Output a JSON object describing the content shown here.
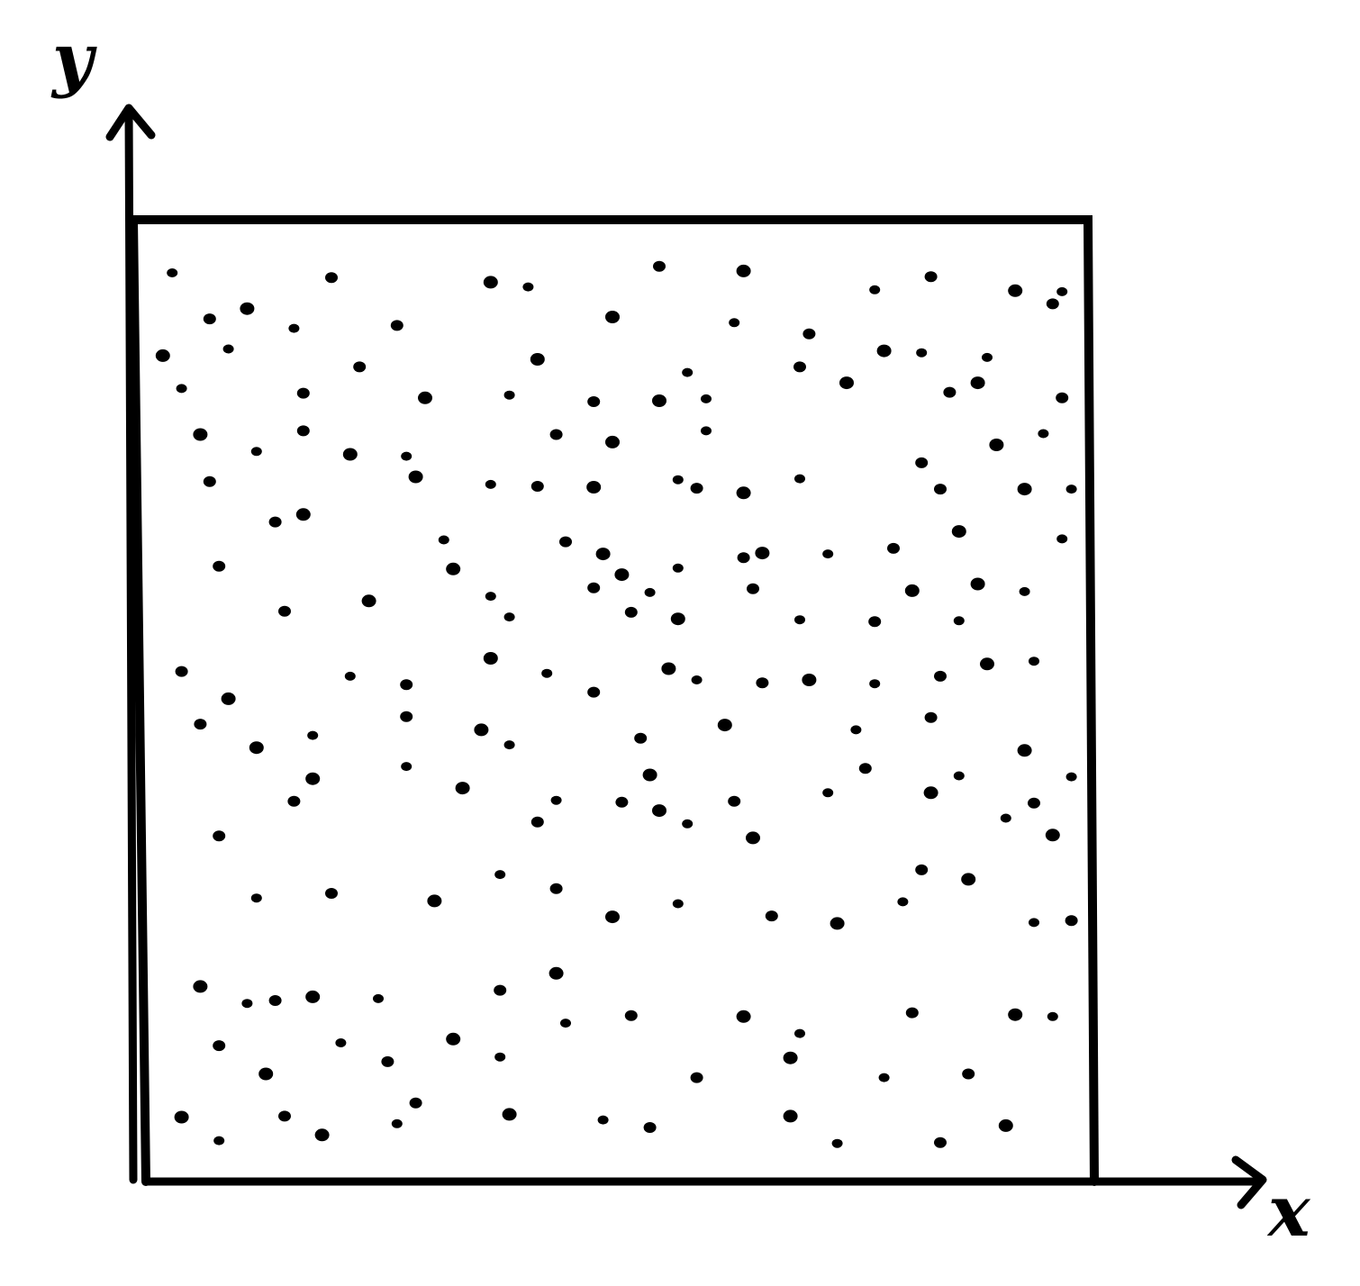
{
  "axes": {
    "x_label": "x",
    "y_label": "y"
  },
  "colors": {
    "ink": "#000000",
    "background": "#ffffff"
  },
  "chart_data": {
    "type": "scatter",
    "xlim": [
      0,
      1
    ],
    "ylim": [
      0,
      1
    ],
    "grid": false,
    "points": [
      [
        0.03,
        0.955
      ],
      [
        0.2,
        0.95
      ],
      [
        0.37,
        0.945
      ],
      [
        0.41,
        0.94
      ],
      [
        0.55,
        0.962
      ],
      [
        0.64,
        0.957
      ],
      [
        0.78,
        0.937
      ],
      [
        0.84,
        0.951
      ],
      [
        0.93,
        0.936
      ],
      [
        0.98,
        0.935
      ],
      [
        0.07,
        0.906
      ],
      [
        0.11,
        0.917
      ],
      [
        0.16,
        0.896
      ],
      [
        0.27,
        0.899
      ],
      [
        0.5,
        0.908
      ],
      [
        0.63,
        0.902
      ],
      [
        0.71,
        0.89
      ],
      [
        0.79,
        0.872
      ],
      [
        0.9,
        0.865
      ],
      [
        0.97,
        0.922
      ],
      [
        0.02,
        0.867
      ],
      [
        0.09,
        0.874
      ],
      [
        0.23,
        0.855
      ],
      [
        0.42,
        0.863
      ],
      [
        0.58,
        0.849
      ],
      [
        0.7,
        0.855
      ],
      [
        0.75,
        0.838
      ],
      [
        0.83,
        0.87
      ],
      [
        0.86,
        0.828
      ],
      [
        0.89,
        0.838
      ],
      [
        0.04,
        0.832
      ],
      [
        0.17,
        0.827
      ],
      [
        0.3,
        0.822
      ],
      [
        0.39,
        0.825
      ],
      [
        0.48,
        0.818
      ],
      [
        0.55,
        0.819
      ],
      [
        0.6,
        0.821
      ],
      [
        0.98,
        0.822
      ],
      [
        0.06,
        0.783
      ],
      [
        0.12,
        0.765
      ],
      [
        0.17,
        0.787
      ],
      [
        0.22,
        0.762
      ],
      [
        0.28,
        0.76
      ],
      [
        0.44,
        0.783
      ],
      [
        0.5,
        0.775
      ],
      [
        0.6,
        0.787
      ],
      [
        0.83,
        0.753
      ],
      [
        0.91,
        0.772
      ],
      [
        0.96,
        0.784
      ],
      [
        0.07,
        0.733
      ],
      [
        0.29,
        0.738
      ],
      [
        0.37,
        0.73
      ],
      [
        0.42,
        0.728
      ],
      [
        0.48,
        0.727
      ],
      [
        0.57,
        0.735
      ],
      [
        0.59,
        0.726
      ],
      [
        0.64,
        0.721
      ],
      [
        0.7,
        0.736
      ],
      [
        0.85,
        0.725
      ],
      [
        0.94,
        0.725
      ],
      [
        0.99,
        0.725
      ],
      [
        0.14,
        0.69
      ],
      [
        0.17,
        0.698
      ],
      [
        0.32,
        0.671
      ],
      [
        0.45,
        0.669
      ],
      [
        0.49,
        0.656
      ],
      [
        0.57,
        0.641
      ],
      [
        0.64,
        0.652
      ],
      [
        0.66,
        0.657
      ],
      [
        0.73,
        0.656
      ],
      [
        0.8,
        0.662
      ],
      [
        0.87,
        0.68
      ],
      [
        0.98,
        0.672
      ],
      [
        0.08,
        0.643
      ],
      [
        0.33,
        0.64
      ],
      [
        0.37,
        0.611
      ],
      [
        0.48,
        0.62
      ],
      [
        0.51,
        0.634
      ],
      [
        0.54,
        0.615
      ],
      [
        0.65,
        0.619
      ],
      [
        0.89,
        0.624
      ],
      [
        0.94,
        0.616
      ],
      [
        0.15,
        0.595
      ],
      [
        0.24,
        0.606
      ],
      [
        0.39,
        0.589
      ],
      [
        0.52,
        0.594
      ],
      [
        0.57,
        0.587
      ],
      [
        0.7,
        0.586
      ],
      [
        0.78,
        0.584
      ],
      [
        0.82,
        0.617
      ],
      [
        0.87,
        0.585
      ],
      [
        0.04,
        0.531
      ],
      [
        0.09,
        0.502
      ],
      [
        0.22,
        0.526
      ],
      [
        0.28,
        0.517
      ],
      [
        0.37,
        0.545
      ],
      [
        0.43,
        0.529
      ],
      [
        0.48,
        0.509
      ],
      [
        0.56,
        0.534
      ],
      [
        0.59,
        0.522
      ],
      [
        0.66,
        0.519
      ],
      [
        0.71,
        0.522
      ],
      [
        0.78,
        0.518
      ],
      [
        0.85,
        0.526
      ],
      [
        0.9,
        0.539
      ],
      [
        0.95,
        0.542
      ],
      [
        0.06,
        0.475
      ],
      [
        0.12,
        0.45
      ],
      [
        0.18,
        0.463
      ],
      [
        0.28,
        0.483
      ],
      [
        0.36,
        0.469
      ],
      [
        0.39,
        0.453
      ],
      [
        0.53,
        0.46
      ],
      [
        0.62,
        0.474
      ],
      [
        0.76,
        0.469
      ],
      [
        0.84,
        0.482
      ],
      [
        0.94,
        0.447
      ],
      [
        0.99,
        0.419
      ],
      [
        0.16,
        0.393
      ],
      [
        0.34,
        0.407
      ],
      [
        0.44,
        0.394
      ],
      [
        0.51,
        0.392
      ],
      [
        0.54,
        0.421
      ],
      [
        0.58,
        0.369
      ],
      [
        0.63,
        0.393
      ],
      [
        0.65,
        0.354
      ],
      [
        0.73,
        0.402
      ],
      [
        0.77,
        0.428
      ],
      [
        0.84,
        0.402
      ],
      [
        0.87,
        0.42
      ],
      [
        0.08,
        0.356
      ],
      [
        0.18,
        0.417
      ],
      [
        0.28,
        0.43
      ],
      [
        0.42,
        0.371
      ],
      [
        0.55,
        0.383
      ],
      [
        0.92,
        0.375
      ],
      [
        0.95,
        0.391
      ],
      [
        0.97,
        0.357
      ],
      [
        0.12,
        0.29
      ],
      [
        0.2,
        0.295
      ],
      [
        0.31,
        0.287
      ],
      [
        0.38,
        0.315
      ],
      [
        0.44,
        0.3
      ],
      [
        0.5,
        0.27
      ],
      [
        0.57,
        0.284
      ],
      [
        0.67,
        0.271
      ],
      [
        0.74,
        0.263
      ],
      [
        0.81,
        0.286
      ],
      [
        0.83,
        0.32
      ],
      [
        0.88,
        0.31
      ],
      [
        0.95,
        0.264
      ],
      [
        0.99,
        0.266
      ],
      [
        0.06,
        0.196
      ],
      [
        0.11,
        0.178
      ],
      [
        0.14,
        0.181
      ],
      [
        0.18,
        0.185
      ],
      [
        0.25,
        0.183
      ],
      [
        0.38,
        0.192
      ],
      [
        0.44,
        0.21
      ],
      [
        0.45,
        0.157
      ],
      [
        0.52,
        0.165
      ],
      [
        0.64,
        0.164
      ],
      [
        0.7,
        0.146
      ],
      [
        0.82,
        0.168
      ],
      [
        0.93,
        0.166
      ],
      [
        0.97,
        0.164
      ],
      [
        0.08,
        0.133
      ],
      [
        0.13,
        0.103
      ],
      [
        0.21,
        0.136
      ],
      [
        0.26,
        0.116
      ],
      [
        0.33,
        0.14
      ],
      [
        0.38,
        0.121
      ],
      [
        0.59,
        0.099
      ],
      [
        0.69,
        0.12
      ],
      [
        0.79,
        0.099
      ],
      [
        0.88,
        0.103
      ],
      [
        0.04,
        0.057
      ],
      [
        0.08,
        0.032
      ],
      [
        0.15,
        0.058
      ],
      [
        0.19,
        0.038
      ],
      [
        0.27,
        0.05
      ],
      [
        0.29,
        0.072
      ],
      [
        0.39,
        0.06
      ],
      [
        0.49,
        0.054
      ],
      [
        0.54,
        0.046
      ],
      [
        0.69,
        0.058
      ],
      [
        0.74,
        0.029
      ],
      [
        0.85,
        0.03
      ],
      [
        0.92,
        0.048
      ]
    ]
  }
}
